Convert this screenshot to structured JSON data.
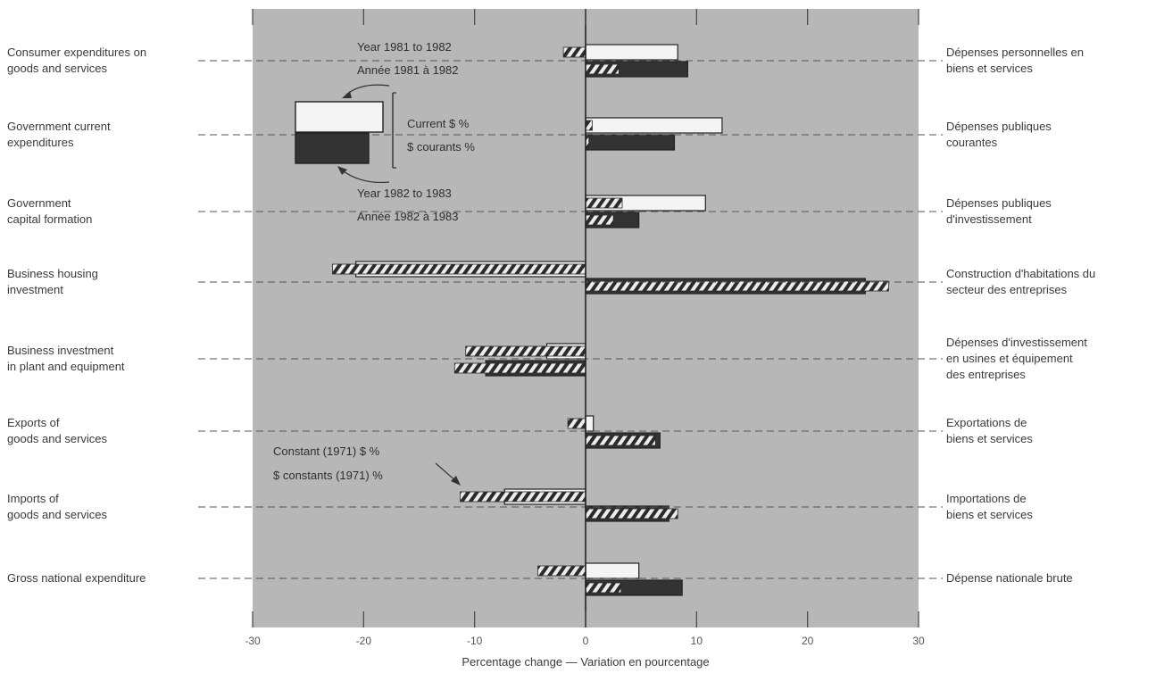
{
  "chart_data": {
    "type": "bar",
    "orientation": "horizontal",
    "xlabel": "Percentage change — Variation en pourcentage",
    "xlim": [
      -30,
      30
    ],
    "xticks": [
      "-30",
      "-20",
      "-10",
      "0",
      "10",
      "20",
      "30"
    ],
    "grid": false,
    "colors": {
      "plot_background": "#b7b7b7",
      "current_1981_1982": "#f4f4f4",
      "current_1982_1983": "#333333",
      "constant_hatch": "#2b2b2b"
    },
    "categories": [
      {
        "en": [
          "Consumer expenditures on",
          "goods and services"
        ],
        "fr": [
          "Dépenses personnelles en",
          "biens et services"
        ]
      },
      {
        "en": [
          "Government current",
          "expenditures"
        ],
        "fr": [
          "Dépenses publiques",
          "courantes"
        ]
      },
      {
        "en": [
          "Government",
          "capital formation"
        ],
        "fr": [
          "Dépenses publiques",
          "d'investissement"
        ]
      },
      {
        "en": [
          "Business housing",
          "investment"
        ],
        "fr": [
          "Construction d'habitations du",
          "secteur des entreprises"
        ]
      },
      {
        "en": [
          "Business investment",
          "in plant and equipment"
        ],
        "fr": [
          "Dépenses d'investissement",
          "en usines et équipement",
          "des entreprises"
        ]
      },
      {
        "en": [
          "Exports of",
          "goods and services"
        ],
        "fr": [
          "Exportations de",
          "biens et services"
        ]
      },
      {
        "en": [
          "Imports of",
          "goods and services"
        ],
        "fr": [
          "Importations de",
          "biens et services"
        ]
      },
      {
        "en": [
          "Gross national expenditure"
        ],
        "fr": [
          "Dépense nationale brute"
        ]
      }
    ],
    "series": [
      {
        "name": "Year 1981 to 1982 — Current $ %",
        "values": [
          8.3,
          12.3,
          10.8,
          -20.7,
          -3.5,
          0.7,
          -7.3,
          4.8
        ]
      },
      {
        "name": "Year 1981 to 1982 — Constant (1971) $ %",
        "values": [
          -2.0,
          0.6,
          3.3,
          -22.8,
          -10.8,
          -1.6,
          -11.3,
          -4.3
        ]
      },
      {
        "name": "Year 1982 to 1983 — Current $ %",
        "values": [
          9.2,
          8.0,
          4.8,
          25.2,
          -9.0,
          6.7,
          7.5,
          8.7
        ]
      },
      {
        "name": "Year 1982 to 1983 — Constant (1971) $ %",
        "values": [
          3.0,
          0.3,
          2.5,
          27.3,
          -11.8,
          6.3,
          8.3,
          3.2
        ]
      }
    ],
    "annotations": {
      "year1": "Year 1981 to 1982",
      "annee1": "Année 1981 à 1982",
      "current": "Current $ %",
      "courants": "$ courants %",
      "year2": "Year 1982 to 1983",
      "annee2": "Année 1982 à 1983",
      "constant": "Constant (1971) $ %",
      "constants": "$ constants (1971) %"
    }
  }
}
